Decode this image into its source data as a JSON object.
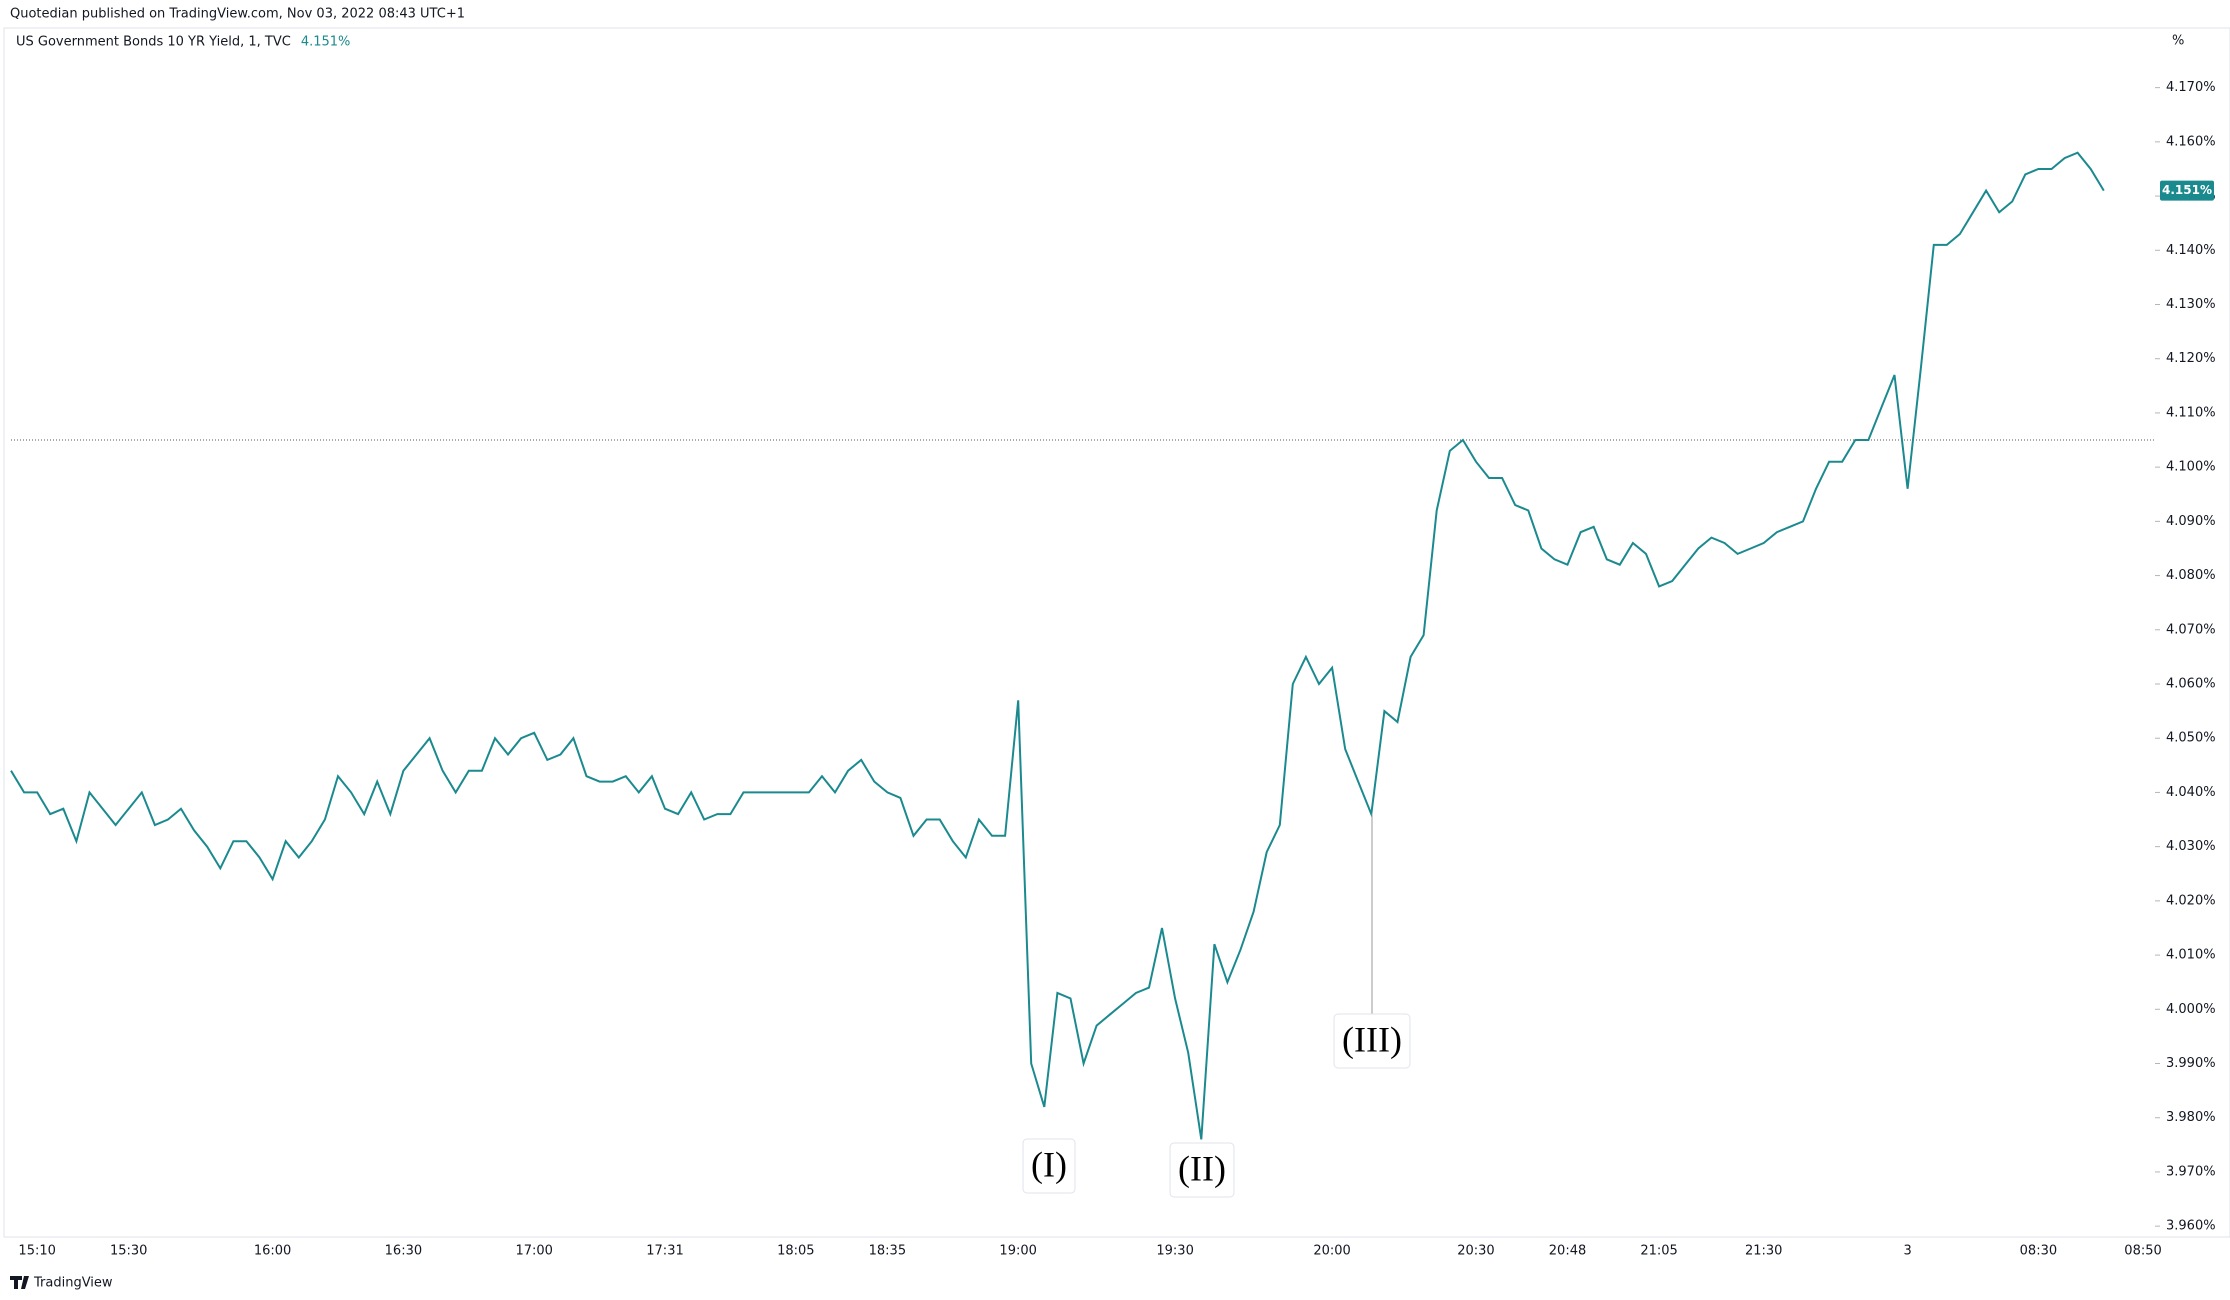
{
  "header": {
    "published": "Quotedian published on TradingView.com, Nov 03, 2022 08:43 UTC+1",
    "footer": "TradingView"
  },
  "chart_data": {
    "type": "line",
    "title": "US Government Bonds 10 YR Yield, 1, TVC",
    "title_value": "4.151%",
    "y_unit": "%",
    "last_label": "4.151%",
    "reference_line": 4.105,
    "annotations": [
      "(I)",
      "(II)",
      "(III)"
    ],
    "categories": [
      null,
      null,
      "15:10",
      null,
      null,
      null,
      null,
      null,
      null,
      "15:30",
      null,
      null,
      null,
      null,
      null,
      null,
      null,
      null,
      null,
      null,
      "16:00",
      null,
      null,
      null,
      null,
      null,
      null,
      null,
      null,
      null,
      "16:30",
      null,
      null,
      null,
      null,
      null,
      null,
      null,
      null,
      null,
      "17:00",
      null,
      null,
      null,
      null,
      null,
      null,
      null,
      null,
      null,
      "17:31",
      null,
      null,
      null,
      null,
      null,
      null,
      null,
      null,
      null,
      "18:05",
      null,
      null,
      null,
      null,
      null,
      null,
      "18:35",
      null,
      null,
      null,
      null,
      null,
      null,
      null,
      null,
      null,
      "19:00",
      null,
      null,
      null,
      null,
      null,
      null,
      null,
      null,
      null,
      null,
      null,
      "19:30",
      null,
      null,
      null,
      null,
      null,
      null,
      null,
      null,
      null,
      null,
      null,
      "20:00",
      null,
      null,
      null,
      null,
      null,
      null,
      null,
      null,
      null,
      null,
      "20:30",
      null,
      null,
      null,
      null,
      null,
      null,
      "20:48",
      null,
      null,
      null,
      null,
      null,
      null,
      "21:05",
      null,
      null,
      null,
      null,
      null,
      null,
      null,
      "21:30",
      null,
      null,
      null,
      null,
      null,
      null,
      null,
      null,
      null,
      null,
      "3",
      null,
      null,
      null,
      null,
      null,
      null,
      null,
      null,
      null,
      "08:30",
      null,
      null,
      null,
      null,
      null,
      null,
      null,
      "08:50"
    ],
    "series": [
      {
        "name": "US Government Bonds 10 YR Yield",
        "color": "#1b8a8f",
        "values": [
          4.044,
          4.04,
          4.04,
          4.036,
          4.037,
          4.031,
          4.04,
          4.037,
          4.034,
          4.037,
          4.04,
          4.034,
          4.035,
          4.037,
          4.033,
          4.03,
          4.026,
          4.031,
          4.031,
          4.028,
          4.024,
          4.031,
          4.028,
          4.031,
          4.035,
          4.043,
          4.04,
          4.036,
          4.042,
          4.036,
          4.044,
          4.047,
          4.05,
          4.044,
          4.04,
          4.044,
          4.044,
          4.05,
          4.047,
          4.05,
          4.051,
          4.046,
          4.047,
          4.05,
          4.043,
          4.042,
          4.042,
          4.043,
          4.04,
          4.043,
          4.037,
          4.036,
          4.04,
          4.035,
          4.036,
          4.036,
          4.04,
          4.04,
          4.04,
          4.04,
          4.04,
          4.04,
          4.043,
          4.04,
          4.044,
          4.046,
          4.042,
          4.04,
          4.039,
          4.032,
          4.035,
          4.035,
          4.031,
          4.028,
          4.035,
          4.032,
          4.032,
          4.057,
          3.99,
          3.982,
          4.003,
          4.002,
          3.99,
          3.997,
          3.999,
          4.001,
          4.003,
          4.004,
          4.015,
          4.002,
          3.992,
          3.976,
          4.012,
          4.005,
          4.011,
          4.018,
          4.029,
          4.034,
          4.06,
          4.065,
          4.06,
          4.063,
          4.048,
          4.042,
          4.036,
          4.055,
          4.053,
          4.065,
          4.069,
          4.092,
          4.103,
          4.105,
          4.101,
          4.098,
          4.098,
          4.093,
          4.092,
          4.085,
          4.083,
          4.082,
          4.088,
          4.089,
          4.083,
          4.082,
          4.086,
          4.084,
          4.078,
          4.079,
          4.082,
          4.085,
          4.087,
          4.086,
          4.084,
          4.085,
          4.086,
          4.088,
          4.089,
          4.09,
          4.096,
          4.101,
          4.101,
          4.105,
          4.105,
          4.111,
          4.117,
          4.096,
          4.118,
          4.141,
          4.141,
          4.143,
          4.147,
          4.151,
          4.147,
          4.149,
          4.154,
          4.155,
          4.155,
          4.157,
          4.158,
          4.155,
          4.151,
          null,
          null,
          null
        ]
      }
    ],
    "ylim": [
      3.958,
      4.181
    ],
    "yticks": [
      {
        "value": 3.96,
        "label": "3.960%"
      },
      {
        "value": 3.97,
        "label": "3.970%"
      },
      {
        "value": 3.98,
        "label": "3.980%"
      },
      {
        "value": 3.99,
        "label": "3.990%"
      },
      {
        "value": 4.0,
        "label": "4.000%"
      },
      {
        "value": 4.01,
        "label": "4.010%"
      },
      {
        "value": 4.02,
        "label": "4.020%"
      },
      {
        "value": 4.03,
        "label": "4.030%"
      },
      {
        "value": 4.04,
        "label": "4.040%"
      },
      {
        "value": 4.05,
        "label": "4.050%"
      },
      {
        "value": 4.06,
        "label": "4.060%"
      },
      {
        "value": 4.07,
        "label": "4.070%"
      },
      {
        "value": 4.08,
        "label": "4.080%"
      },
      {
        "value": 4.09,
        "label": "4.090%"
      },
      {
        "value": 4.1,
        "label": "4.100%"
      },
      {
        "value": 4.11,
        "label": "4.110%"
      },
      {
        "value": 4.12,
        "label": "4.120%"
      },
      {
        "value": 4.13,
        "label": "4.130%"
      },
      {
        "value": 4.14,
        "label": "4.140%"
      },
      {
        "value": 4.15,
        "label": "4.150%"
      },
      {
        "value": 4.16,
        "label": "4.160%"
      },
      {
        "value": 4.17,
        "label": "4.170%"
      }
    ],
    "grid": false
  }
}
